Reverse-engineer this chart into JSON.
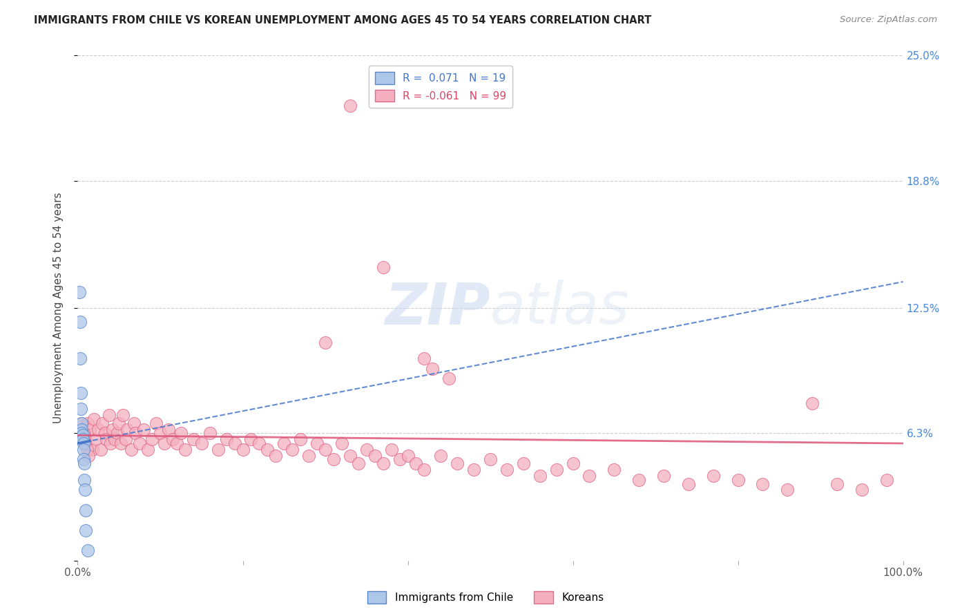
{
  "title": "IMMIGRANTS FROM CHILE VS KOREAN UNEMPLOYMENT AMONG AGES 45 TO 54 YEARS CORRELATION CHART",
  "source": "Source: ZipAtlas.com",
  "ylabel": "Unemployment Among Ages 45 to 54 years",
  "xlim": [
    0,
    1.0
  ],
  "ylim": [
    0,
    0.25
  ],
  "R_chile": 0.071,
  "N_chile": 19,
  "R_korean": -0.061,
  "N_korean": 99,
  "chile_color": "#aec6e8",
  "korean_color": "#f4b0c0",
  "chile_edge": "#5588cc",
  "korean_edge": "#e06888",
  "trend_chile_color": "#4477cc",
  "trend_korean_color": "#dd5577",
  "watermark": "ZIPatlas",
  "watermark_color": "#d0dff0",
  "chile_x": [
    0.002,
    0.003,
    0.003,
    0.004,
    0.004,
    0.005,
    0.005,
    0.005,
    0.006,
    0.006,
    0.007,
    0.007,
    0.007,
    0.008,
    0.008,
    0.009,
    0.01,
    0.01,
    0.012
  ],
  "chile_y": [
    0.133,
    0.118,
    0.1,
    0.083,
    0.075,
    0.068,
    0.065,
    0.063,
    0.062,
    0.06,
    0.058,
    0.055,
    0.05,
    0.048,
    0.04,
    0.035,
    0.025,
    0.015,
    0.005
  ],
  "korean_x": [
    0.005,
    0.008,
    0.01,
    0.012,
    0.015,
    0.018,
    0.02,
    0.022,
    0.025,
    0.028,
    0.03,
    0.033,
    0.035,
    0.038,
    0.04,
    0.042,
    0.045,
    0.048,
    0.05,
    0.052,
    0.055,
    0.058,
    0.06,
    0.065,
    0.068,
    0.07,
    0.075,
    0.08,
    0.085,
    0.09,
    0.095,
    0.1,
    0.105,
    0.11,
    0.115,
    0.12,
    0.125,
    0.13,
    0.14,
    0.15,
    0.16,
    0.17,
    0.18,
    0.19,
    0.2,
    0.21,
    0.22,
    0.23,
    0.24,
    0.25,
    0.26,
    0.27,
    0.28,
    0.29,
    0.3,
    0.31,
    0.32,
    0.33,
    0.34,
    0.35,
    0.36,
    0.37,
    0.38,
    0.39,
    0.4,
    0.41,
    0.42,
    0.44,
    0.46,
    0.48,
    0.5,
    0.52,
    0.54,
    0.56,
    0.58,
    0.6,
    0.62,
    0.65,
    0.68,
    0.71,
    0.74,
    0.77,
    0.8,
    0.83,
    0.86,
    0.89,
    0.92,
    0.95,
    0.98,
    0.33,
    0.37,
    0.3,
    0.42,
    0.43,
    0.45,
    0.007,
    0.009,
    0.011,
    0.013
  ],
  "korean_y": [
    0.068,
    0.063,
    0.06,
    0.068,
    0.065,
    0.055,
    0.07,
    0.06,
    0.065,
    0.055,
    0.068,
    0.063,
    0.06,
    0.072,
    0.058,
    0.065,
    0.06,
    0.063,
    0.068,
    0.058,
    0.072,
    0.06,
    0.065,
    0.055,
    0.068,
    0.063,
    0.058,
    0.065,
    0.055,
    0.06,
    0.068,
    0.063,
    0.058,
    0.065,
    0.06,
    0.058,
    0.063,
    0.055,
    0.06,
    0.058,
    0.063,
    0.055,
    0.06,
    0.058,
    0.055,
    0.06,
    0.058,
    0.055,
    0.052,
    0.058,
    0.055,
    0.06,
    0.052,
    0.058,
    0.055,
    0.05,
    0.058,
    0.052,
    0.048,
    0.055,
    0.052,
    0.048,
    0.055,
    0.05,
    0.052,
    0.048,
    0.045,
    0.052,
    0.048,
    0.045,
    0.05,
    0.045,
    0.048,
    0.042,
    0.045,
    0.048,
    0.042,
    0.045,
    0.04,
    0.042,
    0.038,
    0.042,
    0.04,
    0.038,
    0.035,
    0.078,
    0.038,
    0.035,
    0.04,
    0.225,
    0.145,
    0.108,
    0.1,
    0.095,
    0.09,
    0.063,
    0.058,
    0.055,
    0.052
  ],
  "trend_chile_start_x": 0.0,
  "trend_chile_end_x": 1.0,
  "trend_chile_intercept": 0.058,
  "trend_chile_slope": 0.08,
  "trend_korean_intercept": 0.062,
  "trend_korean_slope": -0.004
}
